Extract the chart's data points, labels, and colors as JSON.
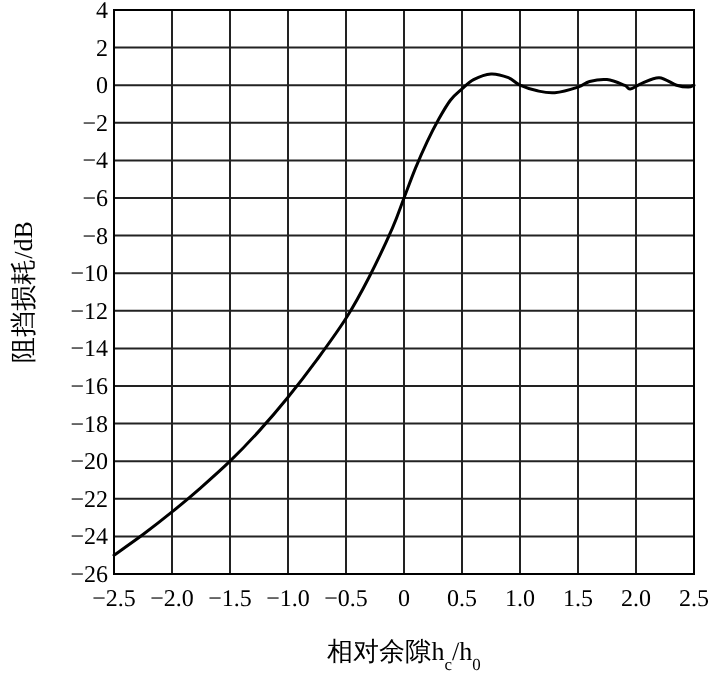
{
  "chart_data": {
    "type": "line",
    "xlabel": "相对余隙h$_{c}$/h$_{0}$",
    "ylabel": "阻挡损耗/dB",
    "x": [
      -2.5,
      -2.25,
      -2.0,
      -1.75,
      -1.5,
      -1.25,
      -1.0,
      -0.75,
      -0.5,
      -0.3,
      -0.1,
      0,
      0.1,
      0.2,
      0.3,
      0.4,
      0.5,
      0.6,
      0.75,
      0.9,
      1.0,
      1.15,
      1.3,
      1.5,
      1.6,
      1.75,
      1.9,
      1.95,
      2.05,
      2.2,
      2.35,
      2.45,
      2.5
    ],
    "series": [
      {
        "color": "#000000",
        "values": [
          -25.0,
          -23.9,
          -22.7,
          -21.4,
          -20.0,
          -18.4,
          -16.6,
          -14.6,
          -12.4,
          -10.2,
          -7.6,
          -6.0,
          -4.4,
          -3.0,
          -1.8,
          -0.8,
          -0.2,
          0.3,
          0.6,
          0.4,
          0.0,
          -0.3,
          -0.4,
          -0.1,
          0.2,
          0.3,
          0.0,
          -0.2,
          0.1,
          0.4,
          0.0,
          -0.1,
          0.0
        ]
      }
    ],
    "xlim": [
      -2.5,
      2.5
    ],
    "ylim": [
      -26,
      4
    ],
    "xticks": [
      {
        "value": -2.5,
        "label": "−2.5"
      },
      {
        "value": -2,
        "label": "−2.0"
      },
      {
        "value": -1.5,
        "label": "−1.5"
      },
      {
        "value": -1,
        "label": "−1.0"
      },
      {
        "value": -0.5,
        "label": "−0.5"
      },
      0,
      0.5,
      {
        "value": 1,
        "label": "1.0"
      },
      1.5,
      {
        "value": 2,
        "label": "2.0"
      },
      2.5
    ],
    "yticks": [
      {
        "value": -26,
        "label": "−26"
      },
      {
        "value": -24,
        "label": "−24"
      },
      {
        "value": -22,
        "label": "−22"
      },
      {
        "value": -20,
        "label": "−20"
      },
      {
        "value": -18,
        "label": "−18"
      },
      {
        "value": -16,
        "label": "−16"
      },
      {
        "value": -14,
        "label": "−14"
      },
      {
        "value": -12,
        "label": "−12"
      },
      {
        "value": -10,
        "label": "−10"
      },
      {
        "value": -8,
        "label": "−8"
      },
      {
        "value": -6,
        "label": "−6"
      },
      {
        "value": -4,
        "label": "−4"
      },
      {
        "value": -2,
        "label": "−2"
      },
      0,
      2,
      4
    ],
    "grid": true,
    "marker": "none",
    "line_style": "solid"
  }
}
